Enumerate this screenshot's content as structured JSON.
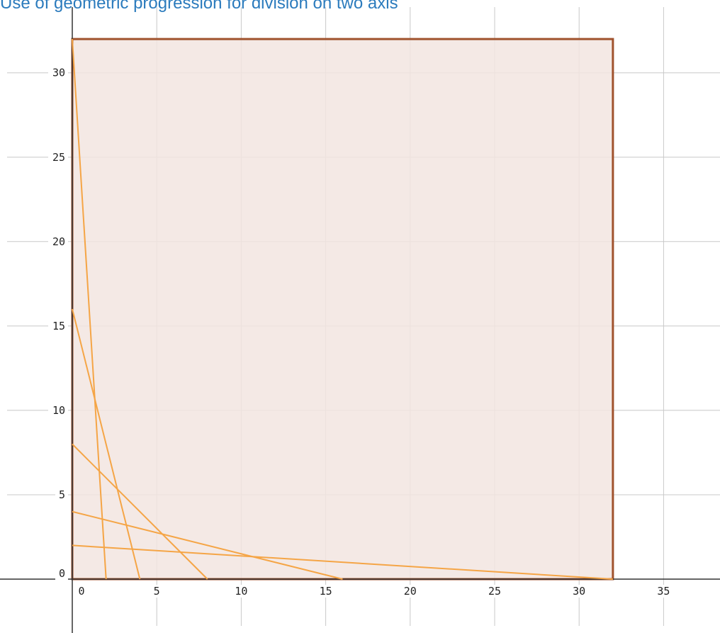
{
  "chart_data": {
    "type": "line",
    "title": "Use of geometric progression for division on two axis",
    "xlabel": "",
    "ylabel": "",
    "xlim": [
      -0.5,
      38
    ],
    "ylim": [
      -3,
      33
    ],
    "grid": true,
    "x_ticks": [
      0,
      5,
      10,
      15,
      20,
      25,
      30,
      35
    ],
    "y_ticks": [
      0,
      5,
      10,
      15,
      20,
      25,
      30
    ],
    "x_tick_labels": [
      "0",
      "5",
      "10",
      "15",
      "20",
      "25",
      "30",
      "35"
    ],
    "y_tick_labels": [
      "0",
      "5",
      "10",
      "15",
      "20",
      "25",
      "30"
    ],
    "region": {
      "x": [
        0,
        32
      ],
      "y": [
        0,
        32
      ],
      "fill_color": "#f2e5e0",
      "border_color": "#a0522d"
    },
    "series": [
      {
        "x": [
          0,
          2
        ],
        "y": [
          32,
          0
        ]
      },
      {
        "x": [
          0,
          4
        ],
        "y": [
          16,
          0
        ]
      },
      {
        "x": [
          0,
          8
        ],
        "y": [
          8,
          0
        ]
      },
      {
        "x": [
          0,
          16
        ],
        "y": [
          4,
          0
        ]
      },
      {
        "x": [
          0,
          32
        ],
        "y": [
          2,
          0
        ]
      }
    ],
    "line_color": "#f5a546"
  }
}
